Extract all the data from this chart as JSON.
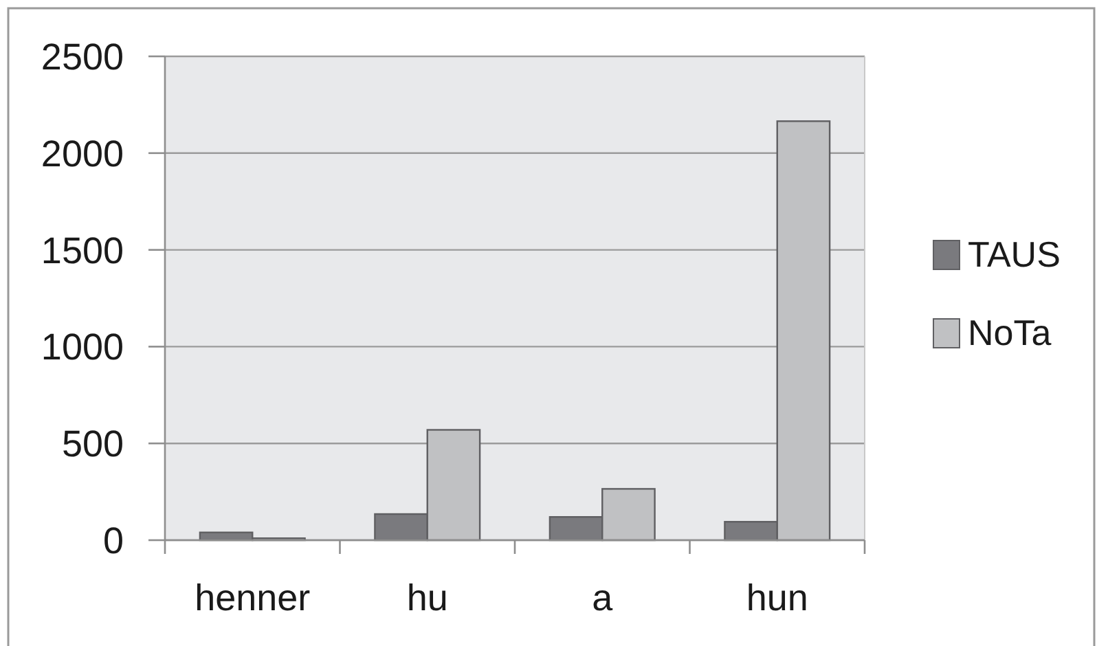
{
  "chart_data": {
    "type": "bar",
    "categories": [
      "henner",
      "hu",
      "a",
      "hun"
    ],
    "series": [
      {
        "name": "TAUS",
        "color": "#7a7a7e",
        "values": [
          40,
          135,
          120,
          95
        ]
      },
      {
        "name": "NoTa",
        "color": "#c0c1c3",
        "values": [
          10,
          570,
          265,
          2165
        ]
      }
    ],
    "ylim": [
      0,
      2500
    ],
    "yticks": [
      0,
      500,
      1000,
      1500,
      2000,
      2500
    ],
    "grid": "y",
    "legend": "right"
  }
}
